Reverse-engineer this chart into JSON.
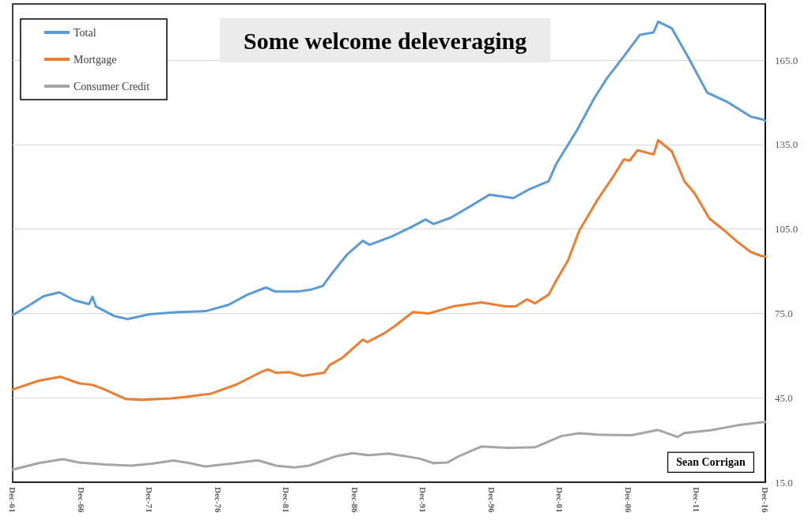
{
  "chart_data": {
    "type": "line",
    "title": "Some welcome deleveraging",
    "annotations": [
      "Sean Corrigan"
    ],
    "series": [
      {
        "name": "Total",
        "color": "#5b9bd5",
        "x": [
          "1961-12",
          "1963-01",
          "1964-03",
          "1965-05",
          "1966-06",
          "1967-07",
          "1967-10",
          "1968-01",
          "1969-05",
          "1970-05",
          "1971-12",
          "1974-01",
          "1976-01",
          "1977-09",
          "1979-02",
          "1980-06",
          "1981-02",
          "1982-10",
          "1983-09",
          "1984-08",
          "1985-03",
          "1986-05",
          "1987-07",
          "1988-01",
          "1989-08",
          "1991-01",
          "1992-02",
          "1992-09",
          "1993-12",
          "1995-05",
          "1996-10",
          "1998-07",
          "1999-08",
          "2001-02",
          "2001-09",
          "2003-03",
          "2004-06",
          "2005-05",
          "2006-08",
          "2007-10",
          "2008-10",
          "2009-02",
          "2010-02",
          "2011-04",
          "2012-09",
          "2014-03",
          "2015-11",
          "2016-10",
          "2016-12"
        ],
        "values": [
          74.4,
          77.5,
          81.1,
          82.5,
          79.7,
          78.3,
          80.9,
          77.5,
          74.1,
          73,
          74.7,
          75.5,
          75.8,
          78,
          81.7,
          84.2,
          82.8,
          82.8,
          83.4,
          84.8,
          88.7,
          95.8,
          100.8,
          99.4,
          102.3,
          105.6,
          108.4,
          106.8,
          109,
          113,
          117.2,
          116,
          118.9,
          122,
          128.4,
          140.2,
          151.5,
          158.5,
          166.4,
          174,
          174.9,
          178.7,
          176.3,
          166.4,
          153.5,
          150.1,
          145,
          143.9,
          143.5
        ]
      },
      {
        "name": "Mortgage",
        "color": "#ed7d31",
        "x": [
          "1961-12",
          "1963-11",
          "1965-06",
          "1966-10",
          "1967-10",
          "1968-09",
          "1970-03",
          "1971-05",
          "1973-07",
          "1974-11",
          "1976-06",
          "1978-04",
          "1980-03",
          "1980-08",
          "1981-03",
          "1982-03",
          "1983-02",
          "1984-09",
          "1985-02",
          "1986-01",
          "1987-07",
          "1987-11",
          "1989-02",
          "1989-11",
          "1991-03",
          "1992-05",
          "1994-02",
          "1996-03",
          "1997-12",
          "1998-09",
          "1999-07",
          "2000-02",
          "2001-02",
          "2001-08",
          "2002-07",
          "2003-05",
          "2004-09",
          "2005-11",
          "2006-08",
          "2007-01",
          "2007-08",
          "2008-10",
          "2009-02",
          "2010-02",
          "2011-01",
          "2011-10",
          "2012-11",
          "2013-12",
          "2014-11",
          "2015-11",
          "2016-08",
          "2016-12"
        ],
        "values": [
          48,
          51.1,
          52.5,
          50.2,
          49.6,
          47.9,
          44.6,
          44.3,
          44.8,
          45.5,
          46.5,
          49.7,
          54.4,
          55.1,
          53.9,
          54.1,
          52.8,
          53.9,
          56.7,
          59.2,
          65.7,
          64.8,
          68,
          70.5,
          75.5,
          75,
          77.5,
          78.9,
          77.5,
          77.5,
          80,
          78.6,
          81.7,
          86.2,
          93.8,
          104.5,
          115.5,
          123.9,
          129.8,
          129.3,
          133,
          131.5,
          136.6,
          132.6,
          122,
          117.7,
          108.7,
          104.5,
          100.6,
          96.9,
          95.5,
          95.2
        ]
      },
      {
        "name": "Consumer Credit",
        "color": "#a5a5a5",
        "x": [
          "1961-12",
          "1963-11",
          "1965-08",
          "1966-10",
          "1968-09",
          "1970-08",
          "1972-02",
          "1973-09",
          "1974-11",
          "1976-01",
          "1977-11",
          "1979-11",
          "1981-03",
          "1982-07",
          "1983-08",
          "1985-08",
          "1986-10",
          "1987-12",
          "1989-06",
          "1991-09",
          "1992-09",
          "1993-09",
          "1994-08",
          "1996-03",
          "1998-02",
          "2000-02",
          "2002-01",
          "2003-05",
          "2004-09",
          "2007-03",
          "2009-02",
          "2010-07",
          "2011-01",
          "2012-12",
          "2014-11",
          "2016-08",
          "2016-12"
        ],
        "values": [
          19.5,
          21.8,
          23.2,
          22,
          21.3,
          20.9,
          21.6,
          22.7,
          21.8,
          20.6,
          21.6,
          22.8,
          20.9,
          20.3,
          20.9,
          24.3,
          25.3,
          24.6,
          25.2,
          23.4,
          21.8,
          22,
          24.4,
          27.7,
          27.2,
          27.4,
          31.4,
          32.4,
          31.9,
          31.7,
          33.6,
          31.1,
          32.5,
          33.5,
          35.2,
          36.3,
          36.4
        ]
      }
    ],
    "xlim": [
      "1961-12",
      "2016-12"
    ],
    "xticks": [
      {
        "value": "1961-12",
        "label": "Dec-61"
      },
      {
        "value": "1966-12",
        "label": "Dec-66"
      },
      {
        "value": "1971-12",
        "label": "Dec-71"
      },
      {
        "value": "1976-12",
        "label": "Dec-76"
      },
      {
        "value": "1981-12",
        "label": "Dec-81"
      },
      {
        "value": "1986-12",
        "label": "Dec-86"
      },
      {
        "value": "1991-12",
        "label": "Dec-91"
      },
      {
        "value": "1996-12",
        "label": "Dec-96"
      },
      {
        "value": "2001-12",
        "label": "Dec-01"
      },
      {
        "value": "2006-12",
        "label": "Dec-06"
      },
      {
        "value": "2011-12",
        "label": "Dec-11"
      },
      {
        "value": "2016-12",
        "label": "Dec-16"
      }
    ],
    "ylim": [
      15,
      185
    ],
    "yticks": [
      {
        "value": 15,
        "label": "15.0"
      },
      {
        "value": 45,
        "label": "45.0"
      },
      {
        "value": 75,
        "label": "75.0"
      },
      {
        "value": 105,
        "label": "105.0"
      },
      {
        "value": 135,
        "label": "135.0"
      },
      {
        "value": 165,
        "label": "165.0"
      }
    ],
    "grid": "y",
    "legend": "top left",
    "marker": "none",
    "line_style": "solid"
  }
}
